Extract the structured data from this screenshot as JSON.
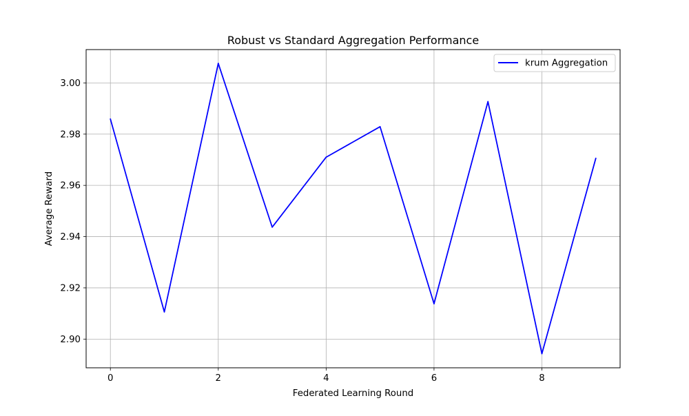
{
  "chart_data": {
    "type": "line",
    "title": "Robust vs Standard Aggregation Performance",
    "xlabel": "Federated Learning Round",
    "ylabel": "Average Reward",
    "xlim": [
      -0.45,
      9.45
    ],
    "ylim": [
      2.8888,
      3.013
    ],
    "xticks": [
      0,
      2,
      4,
      6,
      8
    ],
    "yticks": [
      2.9,
      2.92,
      2.94,
      2.96,
      2.98,
      3.0
    ],
    "xtick_labels": [
      "0",
      "2",
      "4",
      "6",
      "8"
    ],
    "ytick_labels": [
      "2.90",
      "2.92",
      "2.94",
      "2.96",
      "2.98",
      "3.00"
    ],
    "grid": true,
    "legend": "top-right",
    "series": [
      {
        "name": "krum Aggregation",
        "color": "#0000ff",
        "x": [
          0,
          1,
          2,
          3,
          4,
          5,
          6,
          7,
          8,
          9
        ],
        "values": [
          2.9859,
          2.9106,
          3.0076,
          2.9437,
          2.971,
          2.9829,
          2.9138,
          2.9927,
          2.8943,
          2.9706
        ]
      }
    ]
  }
}
